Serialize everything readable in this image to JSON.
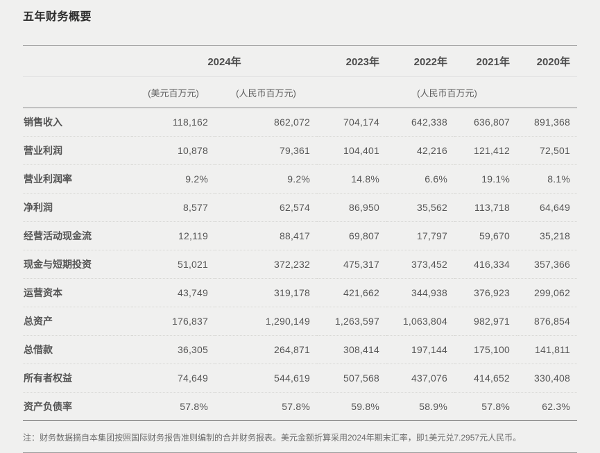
{
  "page": {
    "title": "五年财务概要",
    "background_color": "#f0f0ef"
  },
  "table": {
    "year_headers": [
      "2024年",
      "2023年",
      "2022年",
      "2021年",
      "2020年"
    ],
    "unit_headers": [
      "(美元百万元)",
      "(人民币百万元)",
      "(人民币百万元)"
    ],
    "rows": [
      {
        "label": "销售收入",
        "values": [
          "118,162",
          "862,072",
          "704,174",
          "642,338",
          "636,807",
          "891,368"
        ]
      },
      {
        "label": "营业利润",
        "values": [
          "10,878",
          "79,361",
          "104,401",
          "42,216",
          "121,412",
          "72,501"
        ]
      },
      {
        "label": "营业利润率",
        "values": [
          "9.2%",
          "9.2%",
          "14.8%",
          "6.6%",
          "19.1%",
          "8.1%"
        ]
      },
      {
        "label": "净利润",
        "values": [
          "8,577",
          "62,574",
          "86,950",
          "35,562",
          "113,718",
          "64,649"
        ]
      },
      {
        "label": "经营活动现金流",
        "values": [
          "12,119",
          "88,417",
          "69,807",
          "17,797",
          "59,670",
          "35,218"
        ]
      },
      {
        "label": "现金与短期投资",
        "values": [
          "51,021",
          "372,232",
          "475,317",
          "373,452",
          "416,334",
          "357,366"
        ]
      },
      {
        "label": "运营资本",
        "values": [
          "43,749",
          "319,178",
          "421,662",
          "344,938",
          "376,923",
          "299,062"
        ]
      },
      {
        "label": "总资产",
        "values": [
          "176,837",
          "1,290,149",
          "1,263,597",
          "1,063,804",
          "982,971",
          "876,854"
        ]
      },
      {
        "label": "总借款",
        "values": [
          "36,305",
          "264,871",
          "308,414",
          "197,144",
          "175,100",
          "141,811"
        ]
      },
      {
        "label": "所有者权益",
        "values": [
          "74,649",
          "544,619",
          "507,568",
          "437,076",
          "414,652",
          "330,408"
        ]
      },
      {
        "label": "资产负债率",
        "values": [
          "57.8%",
          "57.8%",
          "59.8%",
          "58.9%",
          "57.8%",
          "62.3%"
        ]
      }
    ],
    "footnote": "注：财务数据摘自本集团按照国际财务报告准则编制的合并财务报表。美元金额折算采用2024年期末汇率，即1美元兑7.2957元人民币。"
  }
}
